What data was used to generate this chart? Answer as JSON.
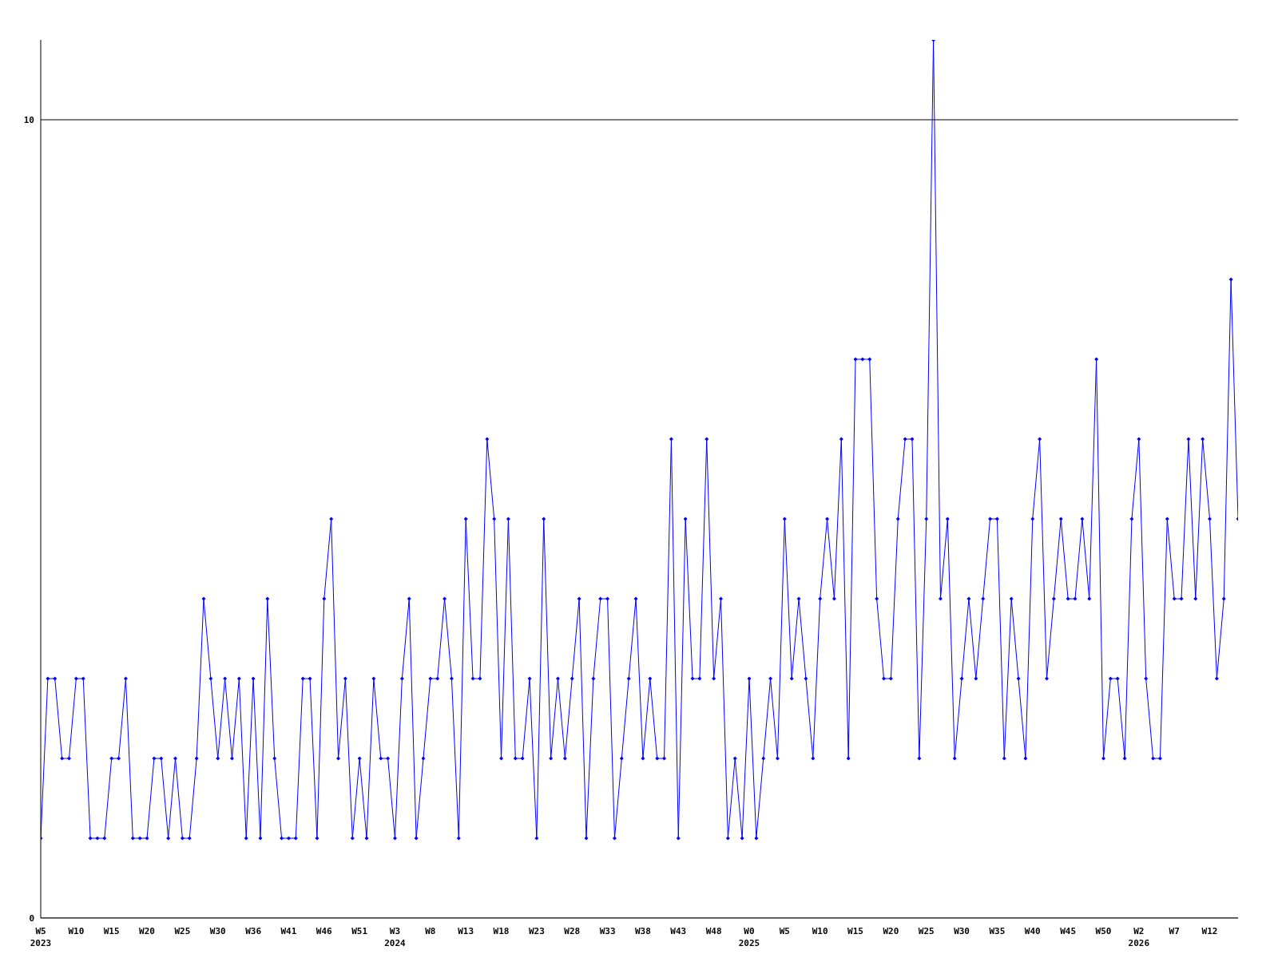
{
  "chart_data": {
    "type": "line",
    "categories": [
      "W5\n2023",
      null,
      null,
      null,
      null,
      "W10",
      null,
      null,
      null,
      null,
      "W15",
      null,
      null,
      null,
      null,
      "W20",
      null,
      null,
      null,
      null,
      "W25",
      null,
      null,
      null,
      null,
      "W30",
      null,
      null,
      null,
      null,
      "W36",
      null,
      null,
      null,
      null,
      "W41",
      null,
      null,
      null,
      null,
      "W46",
      null,
      null,
      null,
      null,
      "W51",
      null,
      null,
      null,
      null,
      "W3\n2024",
      null,
      null,
      null,
      null,
      "W8",
      null,
      null,
      null,
      null,
      "W13",
      null,
      null,
      null,
      null,
      "W18",
      null,
      null,
      null,
      null,
      "W23",
      null,
      null,
      null,
      null,
      "W28",
      null,
      null,
      null,
      null,
      "W33",
      null,
      null,
      null,
      null,
      "W38",
      null,
      null,
      null,
      null,
      "W43",
      null,
      null,
      null,
      null,
      "W48",
      null,
      null,
      null,
      null,
      "W0\n2025",
      null,
      null,
      null,
      null,
      "W5",
      null,
      null,
      null,
      null,
      "W10",
      null,
      null,
      null,
      null,
      "W15",
      null,
      null,
      null,
      null,
      "W20",
      null,
      null,
      null,
      null,
      "W25",
      null,
      null,
      null,
      null,
      "W30",
      null,
      null,
      null,
      null,
      "W35",
      null,
      null,
      null,
      null,
      "W40",
      null,
      null,
      null,
      null,
      "W45",
      null,
      null,
      null,
      null,
      "W50",
      null,
      null,
      null,
      null,
      "W2\n2026",
      null,
      null,
      null,
      null,
      "W7",
      null,
      null,
      null,
      null,
      "W12",
      null,
      null,
      null,
      null
    ],
    "series": [
      {
        "color": "#0000ff",
        "values": [
          1,
          3,
          3,
          2,
          2,
          3,
          3,
          1,
          1,
          1,
          2,
          2,
          3,
          1,
          1,
          1,
          2,
          2,
          1,
          2,
          1,
          1,
          2,
          4,
          3,
          2,
          3,
          2,
          3,
          1,
          3,
          1,
          4,
          2,
          1,
          1,
          1,
          3,
          3,
          1,
          4,
          5,
          2,
          3,
          1,
          2,
          1,
          3,
          2,
          2,
          1,
          3,
          4,
          1,
          2,
          3,
          3,
          4,
          3,
          1,
          5,
          3,
          3,
          6,
          5,
          2,
          5,
          2,
          2,
          3,
          1,
          5,
          2,
          3,
          2,
          3,
          4,
          1,
          3,
          4,
          4,
          1,
          2,
          3,
          4,
          2,
          3,
          2,
          2,
          6,
          1,
          5,
          3,
          3,
          6,
          3,
          4,
          1,
          2,
          1,
          3,
          1,
          2,
          3,
          2,
          5,
          3,
          4,
          3,
          2,
          4,
          5,
          4,
          6,
          2,
          7,
          7,
          7,
          4,
          3,
          3,
          5,
          6,
          6,
          2,
          5,
          11,
          4,
          5,
          2,
          3,
          4,
          3,
          4,
          5,
          5,
          2,
          4,
          3,
          2,
          5,
          6,
          3,
          4,
          5,
          4,
          4,
          5,
          4,
          7,
          2,
          3,
          3,
          2,
          5,
          6,
          3,
          2,
          2,
          5,
          4,
          4,
          6,
          4,
          6,
          5,
          3,
          4,
          8,
          5
        ]
      }
    ],
    "ylim": [
      0,
      11
    ],
    "yticks": [
      0,
      10
    ],
    "grid": "y",
    "marker": "diamond",
    "line_style": "solid"
  }
}
